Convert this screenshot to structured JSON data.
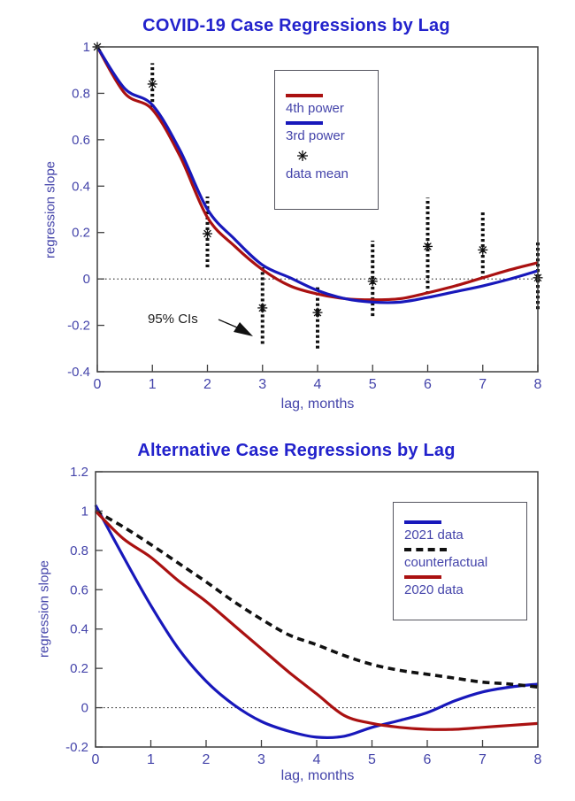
{
  "colors": {
    "title": "#2222cc",
    "axis_text": "#4444aa",
    "axis_line": "#3f3f3f",
    "marker_black": "#111111",
    "red_line": "#aa1111",
    "blue_line": "#1818bb"
  },
  "chart_data": [
    {
      "type": "line",
      "title": "COVID-19 Case Regressions by Lag",
      "xlabel": "lag, months",
      "ylabel": "regression slope",
      "xlim": [
        0,
        8
      ],
      "ylim": [
        -0.4,
        1.0
      ],
      "xticks": [
        0,
        1,
        2,
        3,
        4,
        5,
        6,
        7,
        8
      ],
      "yticks": [
        1,
        0.8,
        0.6,
        0.4,
        0.2,
        0,
        -0.2,
        -0.4
      ],
      "ytick_labels": [
        "1",
        "0.8",
        "0.6",
        "0.4",
        "0.2",
        "0",
        "-0.2",
        "-0.4"
      ],
      "grid": false,
      "zero_line": true,
      "legend_position": "upper-center-inside",
      "x": [
        0,
        0.5,
        1,
        1.5,
        2,
        2.5,
        3,
        3.5,
        4,
        4.5,
        5,
        5.5,
        6,
        6.5,
        7,
        7.5,
        8
      ],
      "series": [
        {
          "name": "4th power",
          "color": "#aa1111",
          "dash": false,
          "values": [
            1.0,
            0.8,
            0.73,
            0.53,
            0.265,
            0.14,
            0.04,
            -0.03,
            -0.065,
            -0.085,
            -0.09,
            -0.085,
            -0.06,
            -0.03,
            0.005,
            0.04,
            0.07
          ]
        },
        {
          "name": "3rd power",
          "color": "#1818bb",
          "dash": false,
          "values": [
            1.0,
            0.82,
            0.75,
            0.555,
            0.3,
            0.17,
            0.06,
            0.005,
            -0.05,
            -0.085,
            -0.1,
            -0.1,
            -0.08,
            -0.055,
            -0.03,
            0.0,
            0.035
          ]
        }
      ],
      "points": {
        "name": "data mean",
        "marker": "asterisk",
        "color": "#111111",
        "x": [
          0,
          1,
          2,
          3,
          4,
          5,
          6,
          7,
          8
        ],
        "mean": [
          1.0,
          0.84,
          0.195,
          -0.125,
          -0.145,
          -0.01,
          0.14,
          0.125,
          0.005
        ],
        "ci_low": [
          1.0,
          0.74,
          0.05,
          -0.28,
          -0.3,
          -0.16,
          -0.065,
          0.0,
          -0.13
        ],
        "ci_high": [
          1.0,
          0.93,
          0.355,
          0.05,
          -0.03,
          0.165,
          0.35,
          0.29,
          0.165
        ]
      },
      "annotation": {
        "text": "95% CIs",
        "points_to": "dotted confidence-interval bar at lag 3"
      }
    },
    {
      "type": "line",
      "title": "Alternative Case Regressions by Lag",
      "xlabel": "lag, months",
      "ylabel": "regression slope",
      "xlim": [
        0,
        8
      ],
      "ylim": [
        -0.2,
        1.2
      ],
      "xticks": [
        0,
        1,
        2,
        3,
        4,
        5,
        6,
        7,
        8
      ],
      "yticks": [
        1.2,
        1,
        0.8,
        0.6,
        0.4,
        0.2,
        0,
        -0.2
      ],
      "ytick_labels": [
        "1.2",
        "1",
        "0.8",
        "0.6",
        "0.4",
        "0.2",
        "0",
        "-0.2"
      ],
      "grid": false,
      "zero_line": true,
      "legend_position": "upper-right-inside",
      "x": [
        0,
        0.5,
        1,
        1.5,
        2,
        2.5,
        3,
        3.5,
        4,
        4.5,
        5,
        5.5,
        6,
        6.5,
        7,
        7.5,
        8
      ],
      "series": [
        {
          "name": "2021 data",
          "color": "#1818bb",
          "dash": false,
          "values": [
            1.03,
            0.77,
            0.52,
            0.3,
            0.135,
            0.015,
            -0.07,
            -0.12,
            -0.15,
            -0.145,
            -0.1,
            -0.065,
            -0.025,
            0.035,
            0.08,
            0.105,
            0.12
          ]
        },
        {
          "name": "counterfactual",
          "color": "#111111",
          "dash": true,
          "values": [
            1.0,
            0.92,
            0.83,
            0.735,
            0.64,
            0.54,
            0.45,
            0.37,
            0.32,
            0.265,
            0.22,
            0.19,
            0.17,
            0.15,
            0.13,
            0.12,
            0.105
          ]
        },
        {
          "name": "2020 data",
          "color": "#aa1111",
          "dash": false,
          "values": [
            1.0,
            0.86,
            0.765,
            0.645,
            0.54,
            0.42,
            0.3,
            0.18,
            0.07,
            -0.04,
            -0.08,
            -0.1,
            -0.11,
            -0.11,
            -0.1,
            -0.09,
            -0.08
          ]
        }
      ]
    }
  ]
}
